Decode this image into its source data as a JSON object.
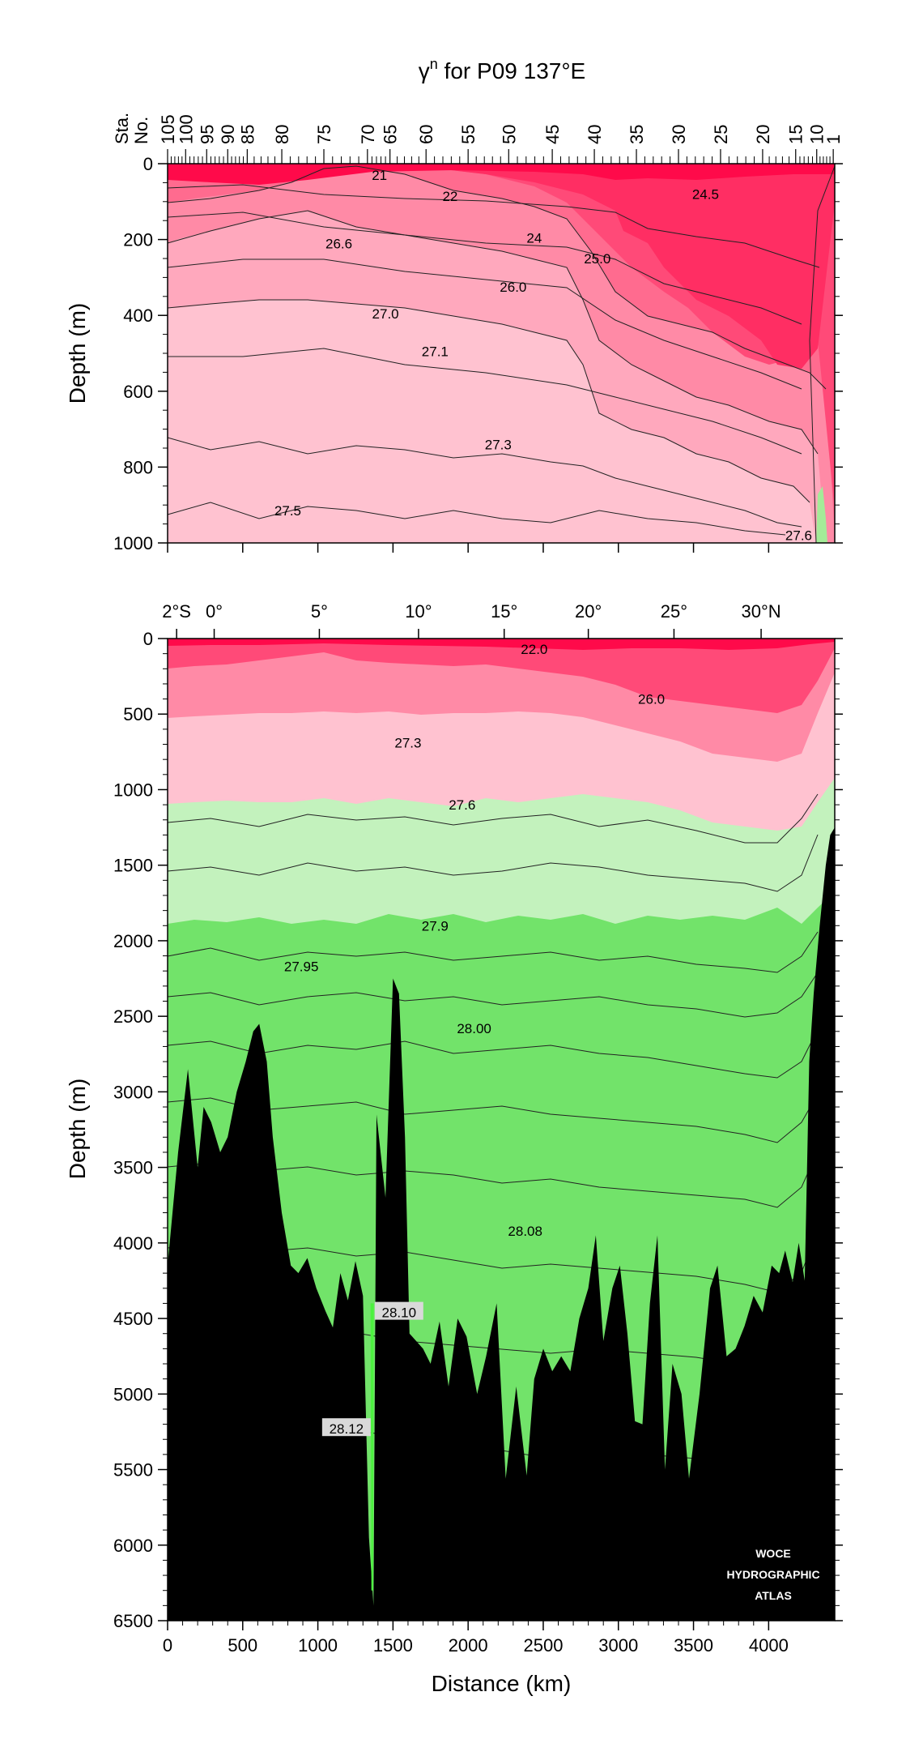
{
  "chart_data": [
    {
      "type": "contour-section",
      "title_symbol": "γ",
      "title_superscript": "n",
      "title_rest": " for P09 137°E",
      "station_axis_label_line1": "Sta.",
      "station_axis_label_line2": "No.",
      "station_ticks": [
        {
          "label": "105",
          "distance_km": 0
        },
        {
          "label": "100",
          "distance_km": 120
        },
        {
          "label": "95",
          "distance_km": 260
        },
        {
          "label": "90",
          "distance_km": 400
        },
        {
          "label": "85",
          "distance_km": 530
        },
        {
          "label": "80",
          "distance_km": 760
        },
        {
          "label": "75",
          "distance_km": 1040
        },
        {
          "label": "70",
          "distance_km": 1330
        },
        {
          "label": "65",
          "distance_km": 1480
        },
        {
          "label": "60",
          "distance_km": 1720
        },
        {
          "label": "55",
          "distance_km": 2000
        },
        {
          "label": "50",
          "distance_km": 2270
        },
        {
          "label": "45",
          "distance_km": 2560
        },
        {
          "label": "40",
          "distance_km": 2840
        },
        {
          "label": "35",
          "distance_km": 3120
        },
        {
          "label": "30",
          "distance_km": 3400
        },
        {
          "label": "25",
          "distance_km": 3680
        },
        {
          "label": "20",
          "distance_km": 3960
        },
        {
          "label": "15",
          "distance_km": 4180
        },
        {
          "label": "10",
          "distance_km": 4320
        },
        {
          "label": "1",
          "distance_km": 4430
        }
      ],
      "ylabel": "Depth (m)",
      "ylim": [
        0,
        1000
      ],
      "y_ticks": [
        0,
        200,
        400,
        600,
        800,
        1000
      ],
      "xlim": [
        0,
        4440
      ],
      "contour_labels": [
        {
          "text": "21",
          "distance_km": 1410,
          "depth_m": 30
        },
        {
          "text": "22",
          "distance_km": 1880,
          "depth_m": 85
        },
        {
          "text": "24.5",
          "distance_km": 3580,
          "depth_m": 80
        },
        {
          "text": "24",
          "distance_km": 2440,
          "depth_m": 195
        },
        {
          "text": "26.6",
          "distance_km": 1140,
          "depth_m": 210
        },
        {
          "text": "25.0",
          "distance_km": 2860,
          "depth_m": 250
        },
        {
          "text": "26.0",
          "distance_km": 2300,
          "depth_m": 325
        },
        {
          "text": "27.0",
          "distance_km": 1450,
          "depth_m": 395
        },
        {
          "text": "27.1",
          "distance_km": 1780,
          "depth_m": 495
        },
        {
          "text": "27.3",
          "distance_km": 2200,
          "depth_m": 740
        },
        {
          "text": "27.5",
          "distance_km": 800,
          "depth_m": 915
        },
        {
          "text": "27.6",
          "distance_km": 4200,
          "depth_m": 980
        }
      ]
    },
    {
      "type": "contour-section",
      "lat_ticks": [
        {
          "label": "2°S",
          "distance_km": 60
        },
        {
          "label": "0°",
          "distance_km": 310
        },
        {
          "label": "5°",
          "distance_km": 1010
        },
        {
          "label": "10°",
          "distance_km": 1670
        },
        {
          "label": "15°",
          "distance_km": 2240
        },
        {
          "label": "20°",
          "distance_km": 2800
        },
        {
          "label": "25°",
          "distance_km": 3370
        },
        {
          "label": "30°N",
          "distance_km": 3950
        }
      ],
      "xlabel": "Distance (km)",
      "ylabel": "Depth (m)",
      "xlim": [
        0,
        4440
      ],
      "ylim": [
        0,
        6500
      ],
      "x_ticks": [
        0,
        500,
        1000,
        1500,
        2000,
        2500,
        3000,
        3500,
        4000
      ],
      "y_ticks": [
        0,
        500,
        1000,
        1500,
        2000,
        2500,
        3000,
        3500,
        4000,
        4500,
        5000,
        5500,
        6000,
        6500
      ],
      "contour_labels": [
        {
          "text": "22.0",
          "distance_km": 2440,
          "depth_m": 70,
          "boxed": false
        },
        {
          "text": "26.0",
          "distance_km": 3220,
          "depth_m": 400,
          "boxed": false
        },
        {
          "text": "27.3",
          "distance_km": 1600,
          "depth_m": 690,
          "boxed": false
        },
        {
          "text": "27.6",
          "distance_km": 1960,
          "depth_m": 1100,
          "boxed": false
        },
        {
          "text": "27.9",
          "distance_km": 1780,
          "depth_m": 1900,
          "boxed": false
        },
        {
          "text": "27.95",
          "distance_km": 890,
          "depth_m": 2170,
          "boxed": false
        },
        {
          "text": "28.00",
          "distance_km": 2040,
          "depth_m": 2580,
          "boxed": false
        },
        {
          "text": "28.08",
          "distance_km": 2380,
          "depth_m": 3920,
          "boxed": false
        },
        {
          "text": "28.10",
          "distance_km": 1540,
          "depth_m": 4460,
          "boxed": true
        },
        {
          "text": "28.12",
          "distance_km": 1190,
          "depth_m": 5230,
          "boxed": true
        }
      ],
      "bottom_profile": [
        [
          0,
          4150
        ],
        [
          70,
          3400
        ],
        [
          135,
          2850
        ],
        [
          200,
          3500
        ],
        [
          240,
          3100
        ],
        [
          290,
          3200
        ],
        [
          350,
          3400
        ],
        [
          400,
          3300
        ],
        [
          460,
          3000
        ],
        [
          520,
          2800
        ],
        [
          570,
          2600
        ],
        [
          610,
          2550
        ],
        [
          660,
          2800
        ],
        [
          700,
          3300
        ],
        [
          760,
          3800
        ],
        [
          820,
          4150
        ],
        [
          870,
          4200
        ],
        [
          930,
          4100
        ],
        [
          990,
          4300
        ],
        [
          1050,
          4450
        ],
        [
          1100,
          4560
        ],
        [
          1150,
          4200
        ],
        [
          1200,
          4380
        ],
        [
          1250,
          4120
        ],
        [
          1300,
          4350
        ],
        [
          1340,
          5950
        ],
        [
          1370,
          6400
        ],
        [
          1390,
          3150
        ],
        [
          1450,
          3700
        ],
        [
          1500,
          2250
        ],
        [
          1540,
          2350
        ],
        [
          1580,
          3300
        ],
        [
          1610,
          4600
        ],
        [
          1700,
          4700
        ],
        [
          1750,
          4800
        ],
        [
          1810,
          4520
        ],
        [
          1870,
          4950
        ],
        [
          1930,
          4500
        ],
        [
          1990,
          4620
        ],
        [
          2060,
          5000
        ],
        [
          2120,
          4750
        ],
        [
          2190,
          4400
        ],
        [
          2250,
          5560
        ],
        [
          2320,
          4950
        ],
        [
          2390,
          5540
        ],
        [
          2440,
          4900
        ],
        [
          2500,
          4700
        ],
        [
          2560,
          4850
        ],
        [
          2620,
          4750
        ],
        [
          2680,
          4850
        ],
        [
          2740,
          4500
        ],
        [
          2800,
          4300
        ],
        [
          2850,
          3950
        ],
        [
          2900,
          4650
        ],
        [
          2960,
          4300
        ],
        [
          3010,
          4150
        ],
        [
          3060,
          4600
        ],
        [
          3110,
          5180
        ],
        [
          3160,
          5200
        ],
        [
          3210,
          4400
        ],
        [
          3260,
          3950
        ],
        [
          3310,
          5500
        ],
        [
          3360,
          4800
        ],
        [
          3420,
          5000
        ],
        [
          3470,
          5560
        ],
        [
          3540,
          5000
        ],
        [
          3610,
          4300
        ],
        [
          3660,
          4150
        ],
        [
          3720,
          4750
        ],
        [
          3780,
          4700
        ],
        [
          3840,
          4550
        ],
        [
          3900,
          4350
        ],
        [
          3960,
          4460
        ],
        [
          4020,
          4150
        ],
        [
          4070,
          4200
        ],
        [
          4110,
          4050
        ],
        [
          4160,
          4260
        ],
        [
          4200,
          4000
        ],
        [
          4240,
          4250
        ],
        [
          4270,
          2800
        ],
        [
          4300,
          2350
        ],
        [
          4340,
          1900
        ],
        [
          4380,
          1500
        ],
        [
          4410,
          1300
        ],
        [
          4440,
          1250
        ]
      ],
      "watermark_lines": [
        "WOCE",
        "HYDROGRAPHIC",
        "ATLAS"
      ]
    }
  ],
  "colors": {
    "red_surface": "#ff0a4a",
    "red_1": "#ff2e63",
    "red_2": "#ff4a78",
    "pink_1": "#ff6b8f",
    "pink_2": "#ff8aa6",
    "pink_3": "#ffa8bd",
    "pink_4": "#ffc2d0",
    "green_light": "#c3f2bd",
    "green_main": "#72e36a",
    "green_bright": "#4cf23f",
    "bottom": "#000000"
  }
}
